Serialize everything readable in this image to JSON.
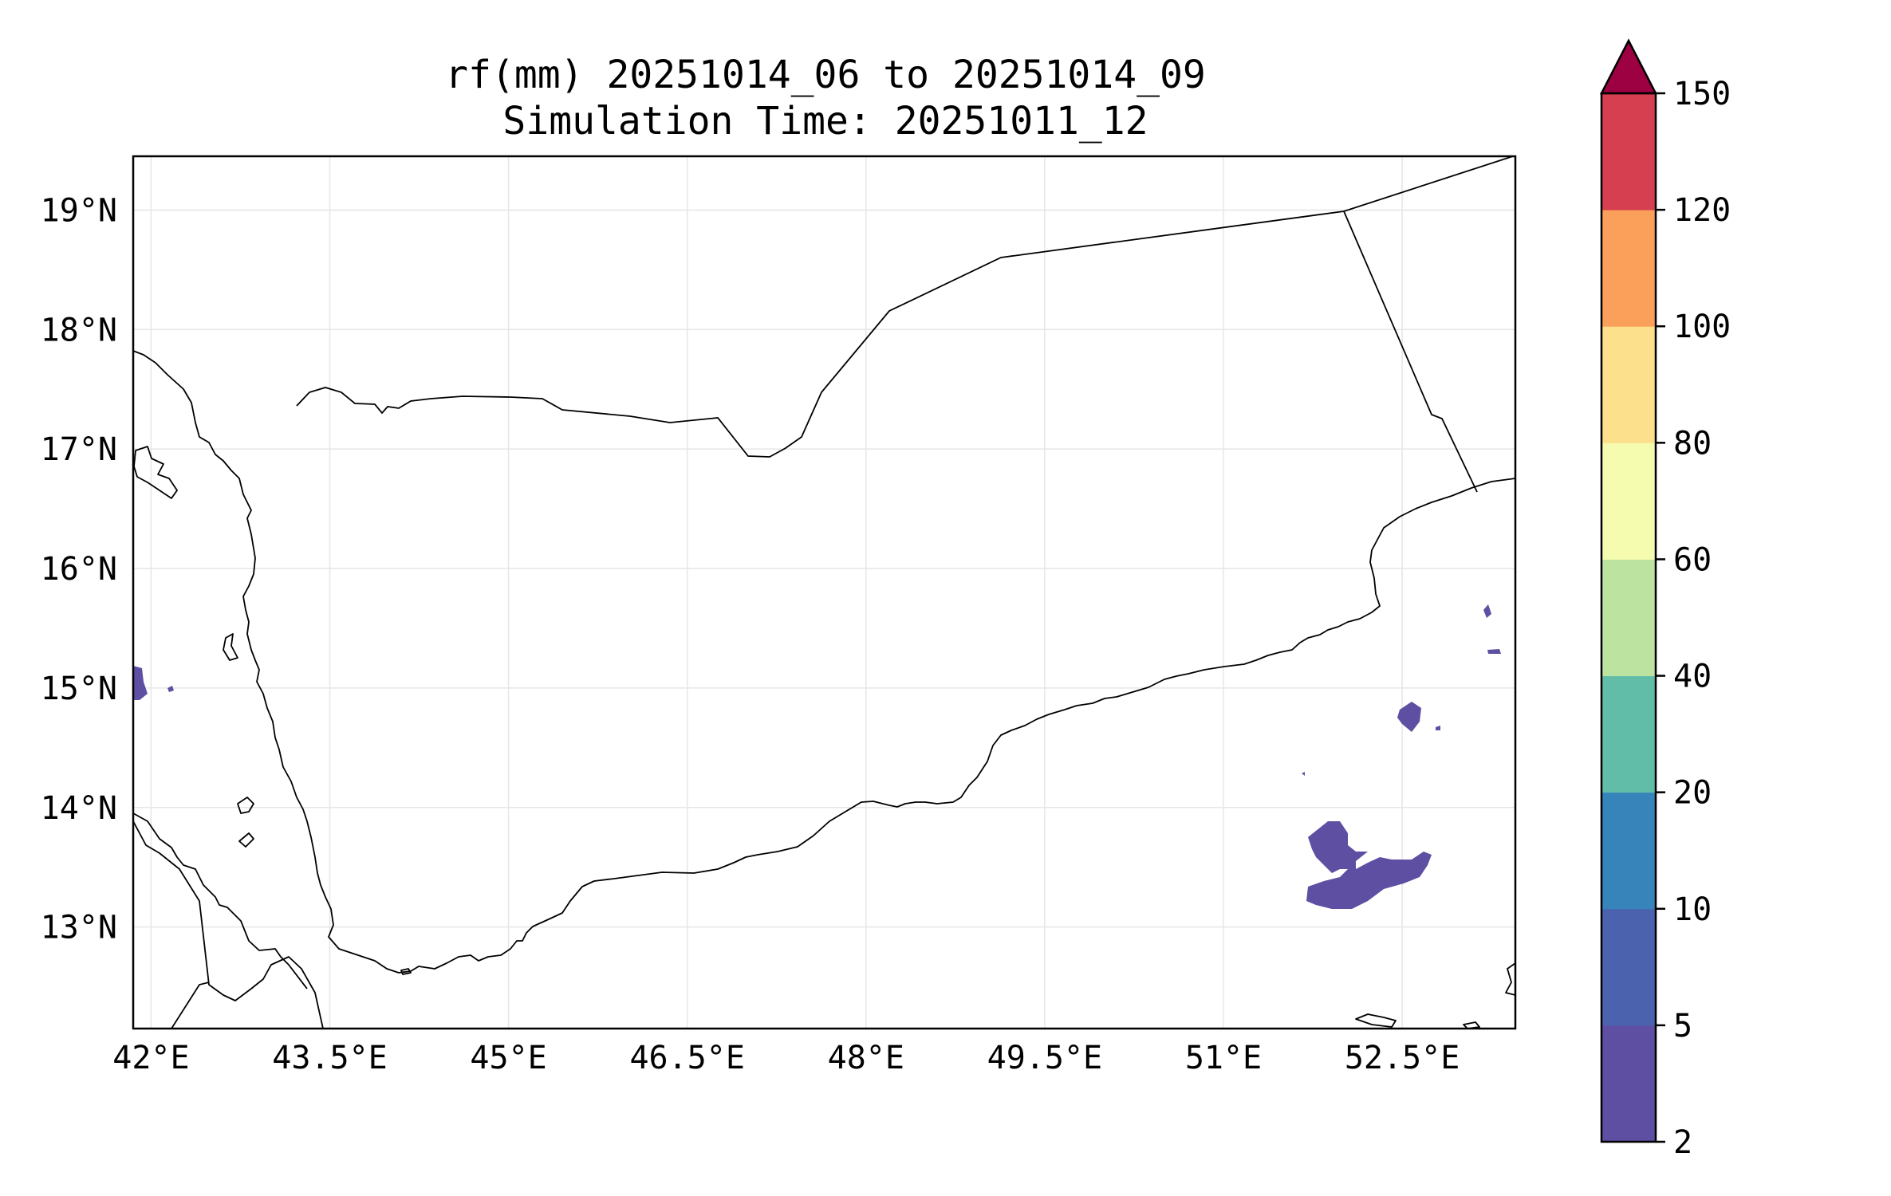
{
  "title": {
    "line1": "rf(mm) 20251014_06 to 20251014_09",
    "line2": "Simulation Time: 20251011_12"
  },
  "map": {
    "lon_ticks": [
      "42°E",
      "43.5°E",
      "45°E",
      "46.5°E",
      "48°E",
      "49.5°E",
      "51°E",
      "52.5°E"
    ],
    "lat_ticks": [
      "19°N",
      "18°N",
      "17°N",
      "16°N",
      "15°N",
      "14°N",
      "13°N"
    ],
    "lon_range": [
      41.85,
      53.45
    ],
    "lat_range": [
      12.15,
      19.45
    ],
    "grid": true
  },
  "colorbar": {
    "levels": [
      "2",
      "5",
      "10",
      "20",
      "40",
      "60",
      "80",
      "100",
      "120",
      "150"
    ],
    "colors": [
      "#5e4fa2",
      "#4b62ae",
      "#3784bb",
      "#62bda8",
      "#bce4a0",
      "#f5fbaf",
      "#fde08b",
      "#fba05b",
      "#d53f4f",
      "#9e0142"
    ],
    "extend": "max"
  },
  "chart_data": {
    "type": "heatmap",
    "title": "rf(mm) 20251014_06 to 20251014_09",
    "subtitle": "Simulation Time: 20251011_12",
    "xlim": [
      41.85,
      53.45
    ],
    "ylim": [
      12.15,
      19.45
    ],
    "color_levels": [
      2,
      5,
      10,
      20,
      40,
      60,
      80,
      100,
      120,
      150
    ],
    "rain_areas": [
      {
        "lon": 51.8,
        "lat": 13.8,
        "max_mm": 5
      },
      {
        "lon": 52.5,
        "lat": 14.7,
        "max_mm": 5
      },
      {
        "lon": 42.0,
        "lat": 15.0,
        "max_mm": 5
      },
      {
        "lon": 53.1,
        "lat": 15.3,
        "max_mm": 5
      }
    ]
  }
}
